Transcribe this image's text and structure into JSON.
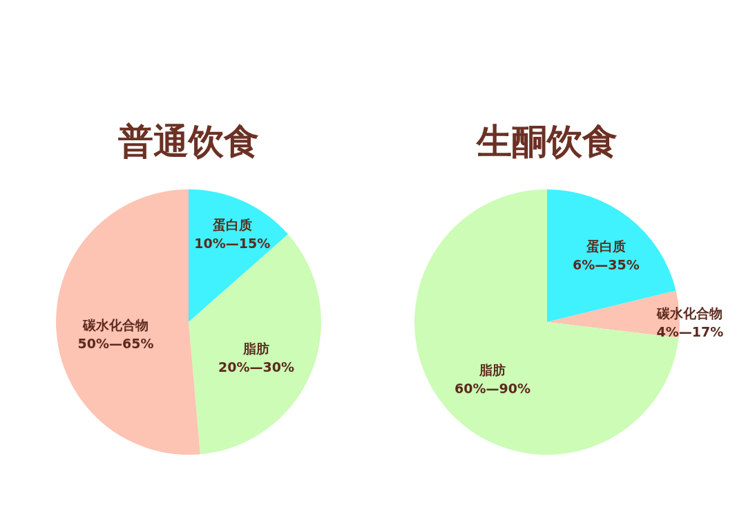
{
  "chart_data": [
    {
      "type": "pie",
      "title": "普通饮食",
      "categories": [
        "蛋白质\n10%—15%",
        "脂肪\n20%—30%",
        "碳水化合物\n50%—65%"
      ],
      "values": [
        13.5,
        35.1,
        51.4
      ],
      "colors": [
        "#3ff2fd",
        "#ccfcb6",
        "#fdc3b3"
      ]
    },
    {
      "type": "pie",
      "title": "生酮饮食",
      "categories": [
        "蛋白质\n6%—35%",
        "碳水化合物\n4%—17%",
        "脂肪\n60%—90%"
      ],
      "values": [
        21.2,
        5.7,
        73.1
      ],
      "colors": [
        "#3ff2fd",
        "#fdc3b3",
        "#ccfcb6"
      ]
    }
  ]
}
